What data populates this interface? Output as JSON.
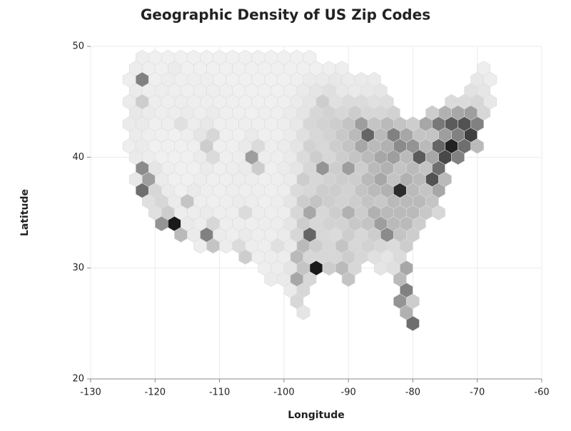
{
  "chart_data": {
    "type": "hexbin",
    "title": "Geographic Density of US Zip Codes",
    "x_label": "Longitude",
    "y_label": "Latitude",
    "colormap": "Greys",
    "grid": true,
    "xlim": [
      -130,
      -60
    ],
    "ylim": [
      20,
      50
    ],
    "xticks": [
      -130,
      -120,
      -110,
      -100,
      -90,
      -80,
      -70,
      -60
    ],
    "yticks": [
      20,
      30,
      40,
      50
    ],
    "x": [
      -122,
      -120,
      -118,
      -116,
      -114,
      -112,
      -110,
      -108,
      -106,
      -104,
      -102,
      -100,
      -98,
      -96,
      -123,
      -121,
      -119,
      -117,
      -115,
      -113,
      -111,
      -109,
      -107,
      -105,
      -103,
      -101,
      -99,
      -97,
      -95,
      -93,
      -91,
      -69,
      -124,
      -122,
      -120,
      -118,
      -116,
      -114,
      -112,
      -110,
      -108,
      -106,
      -104,
      -102,
      -100,
      -98,
      -96,
      -94,
      -92,
      -90,
      -88,
      -86,
      -70,
      -68,
      -123,
      -121,
      -119,
      -117,
      -115,
      -113,
      -111,
      -109,
      -107,
      -105,
      -103,
      -101,
      -99,
      -97,
      -95,
      -93,
      -91,
      -89,
      -87,
      -85,
      -71,
      -69,
      -124,
      -122,
      -120,
      -118,
      -116,
      -114,
      -112,
      -110,
      -108,
      -106,
      -104,
      -102,
      -100,
      -98,
      -96,
      -94,
      -92,
      -90,
      -88,
      -86,
      -84,
      -74,
      -72,
      -70,
      -68,
      -123,
      -121,
      -119,
      -117,
      -115,
      -113,
      -111,
      -109,
      -107,
      -105,
      -103,
      -101,
      -99,
      -97,
      -95,
      -93,
      -91,
      -89,
      -87,
      -85,
      -83,
      -77,
      -75,
      -73,
      -71,
      -69,
      -124,
      -122,
      -120,
      -118,
      -116,
      -114,
      -112,
      -110,
      -108,
      -106,
      -104,
      -102,
      -100,
      -98,
      -96,
      -94,
      -92,
      -90,
      -88,
      -86,
      -84,
      -82,
      -80,
      -78,
      -76,
      -74,
      -72,
      -70,
      -123,
      -121,
      -119,
      -117,
      -115,
      -113,
      -111,
      -109,
      -107,
      -105,
      -103,
      -101,
      -99,
      -97,
      -95,
      -93,
      -91,
      -89,
      -87,
      -85,
      -83,
      -81,
      -79,
      -77,
      -75,
      -73,
      -71,
      -124,
      -122,
      -120,
      -118,
      -116,
      -114,
      -112,
      -110,
      -108,
      -106,
      -104,
      -102,
      -100,
      -98,
      -96,
      -94,
      -92,
      -90,
      -88,
      -86,
      -84,
      -82,
      -80,
      -78,
      -76,
      -74,
      -72,
      -70,
      -123,
      -121,
      -119,
      -117,
      -115,
      -113,
      -111,
      -109,
      -107,
      -105,
      -103,
      -101,
      -99,
      -97,
      -95,
      -93,
      -91,
      -89,
      -87,
      -85,
      -83,
      -81,
      -79,
      -77,
      -75,
      -73,
      -122,
      -120,
      -118,
      -116,
      -114,
      -112,
      -110,
      -108,
      -106,
      -104,
      -102,
      -100,
      -98,
      -96,
      -94,
      -92,
      -90,
      -88,
      -86,
      -84,
      -82,
      -80,
      -78,
      -76,
      -123,
      -121,
      -119,
      -117,
      -115,
      -113,
      -111,
      -109,
      -107,
      -105,
      -103,
      -101,
      -99,
      -97,
      -95,
      -93,
      -91,
      -89,
      -87,
      -85,
      -83,
      -81,
      -79,
      -77,
      -75,
      -122,
      -120,
      -118,
      -116,
      -114,
      -112,
      -110,
      -108,
      -106,
      -104,
      -102,
      -100,
      -98,
      -96,
      -94,
      -92,
      -90,
      -88,
      -86,
      -84,
      -82,
      -80,
      -78,
      -76,
      -121,
      -119,
      -117,
      -115,
      -113,
      -111,
      -109,
      -107,
      -105,
      -103,
      -101,
      -99,
      -97,
      -95,
      -93,
      -91,
      -89,
      -87,
      -85,
      -83,
      -81,
      -79,
      -77,
      -120,
      -118,
      -116,
      -114,
      -112,
      -110,
      -108,
      -106,
      -104,
      -102,
      -100,
      -98,
      -96,
      -94,
      -92,
      -90,
      -88,
      -86,
      -84,
      -82,
      -80,
      -78,
      -76,
      -119,
      -117,
      -115,
      -113,
      -111,
      -109,
      -107,
      -105,
      -103,
      -101,
      -99,
      -97,
      -95,
      -93,
      -91,
      -89,
      -87,
      -85,
      -83,
      -81,
      -79,
      -116,
      -114,
      -112,
      -110,
      -108,
      -106,
      -104,
      -102,
      -100,
      -98,
      -96,
      -94,
      -92,
      -90,
      -88,
      -86,
      -84,
      -82,
      -80,
      -113,
      -111,
      -109,
      -107,
      -105,
      -103,
      -101,
      -99,
      -97,
      -95,
      -93,
      -91,
      -89,
      -87,
      -85,
      -83,
      -81,
      -106,
      -104,
      -102,
      -100,
      -98,
      -96,
      -94,
      -92,
      -90,
      -88,
      -86,
      -84,
      -82,
      -103,
      -101,
      -99,
      -97,
      -95,
      -93,
      -91,
      -89,
      -85,
      -83,
      -81,
      -102,
      -100,
      -98,
      -96,
      -90,
      -82,
      -99,
      -97,
      -81,
      -98,
      -82,
      -80,
      -97,
      -81,
      -80
    ],
    "y": [
      49,
      49,
      49,
      49,
      49,
      49,
      49,
      49,
      49,
      49,
      49,
      49,
      49,
      49,
      48,
      48,
      48,
      48,
      48,
      48,
      48,
      48,
      48,
      48,
      48,
      48,
      48,
      48,
      48,
      48,
      48,
      48,
      47,
      47,
      47,
      47,
      47,
      47,
      47,
      47,
      47,
      47,
      47,
      47,
      47,
      47,
      47,
      47,
      47,
      47,
      47,
      47,
      47,
      47,
      46,
      46,
      46,
      46,
      46,
      46,
      46,
      46,
      46,
      46,
      46,
      46,
      46,
      46,
      46,
      46,
      46,
      46,
      46,
      46,
      46,
      46,
      45,
      45,
      45,
      45,
      45,
      45,
      45,
      45,
      45,
      45,
      45,
      45,
      45,
      45,
      45,
      45,
      45,
      45,
      45,
      45,
      45,
      45,
      45,
      45,
      45,
      44,
      44,
      44,
      44,
      44,
      44,
      44,
      44,
      44,
      44,
      44,
      44,
      44,
      44,
      44,
      44,
      44,
      44,
      44,
      44,
      44,
      44,
      44,
      44,
      44,
      44,
      43,
      43,
      43,
      43,
      43,
      43,
      43,
      43,
      43,
      43,
      43,
      43,
      43,
      43,
      43,
      43,
      43,
      43,
      43,
      43,
      43,
      43,
      43,
      43,
      43,
      43,
      43,
      43,
      42,
      42,
      42,
      42,
      42,
      42,
      42,
      42,
      42,
      42,
      42,
      42,
      42,
      42,
      42,
      42,
      42,
      42,
      42,
      42,
      42,
      42,
      42,
      42,
      42,
      42,
      42,
      41,
      41,
      41,
      41,
      41,
      41,
      41,
      41,
      41,
      41,
      41,
      41,
      41,
      41,
      41,
      41,
      41,
      41,
      41,
      41,
      41,
      41,
      41,
      41,
      41,
      41,
      41,
      41,
      40,
      40,
      40,
      40,
      40,
      40,
      40,
      40,
      40,
      40,
      40,
      40,
      40,
      40,
      40,
      40,
      40,
      40,
      40,
      40,
      40,
      40,
      40,
      40,
      40,
      40,
      39,
      39,
      39,
      39,
      39,
      39,
      39,
      39,
      39,
      39,
      39,
      39,
      39,
      39,
      39,
      39,
      39,
      39,
      39,
      39,
      39,
      39,
      39,
      39,
      38,
      38,
      38,
      38,
      38,
      38,
      38,
      38,
      38,
      38,
      38,
      38,
      38,
      38,
      38,
      38,
      38,
      38,
      38,
      38,
      38,
      38,
      38,
      38,
      38,
      37,
      37,
      37,
      37,
      37,
      37,
      37,
      37,
      37,
      37,
      37,
      37,
      37,
      37,
      37,
      37,
      37,
      37,
      37,
      37,
      37,
      37,
      37,
      37,
      36,
      36,
      36,
      36,
      36,
      36,
      36,
      36,
      36,
      36,
      36,
      36,
      36,
      36,
      36,
      36,
      36,
      36,
      36,
      36,
      36,
      36,
      36,
      35,
      35,
      35,
      35,
      35,
      35,
      35,
      35,
      35,
      35,
      35,
      35,
      35,
      35,
      35,
      35,
      35,
      35,
      35,
      35,
      35,
      35,
      35,
      34,
      34,
      34,
      34,
      34,
      34,
      34,
      34,
      34,
      34,
      34,
      34,
      34,
      34,
      34,
      34,
      34,
      34,
      34,
      34,
      34,
      33,
      33,
      33,
      33,
      33,
      33,
      33,
      33,
      33,
      33,
      33,
      33,
      33,
      33,
      33,
      33,
      33,
      33,
      33,
      32,
      32,
      32,
      32,
      32,
      32,
      32,
      32,
      32,
      32,
      32,
      32,
      32,
      32,
      32,
      32,
      32,
      31,
      31,
      31,
      31,
      31,
      31,
      31,
      31,
      31,
      31,
      31,
      31,
      31,
      30,
      30,
      30,
      30,
      30,
      30,
      30,
      30,
      30,
      30,
      30,
      29,
      29,
      29,
      29,
      29,
      29,
      28,
      28,
      28,
      27,
      27,
      27,
      26,
      26,
      25
    ],
    "values": [
      5,
      3,
      3,
      3,
      3,
      3,
      3,
      3,
      3,
      3,
      3,
      3,
      3,
      3,
      6,
      4,
      3,
      8,
      3,
      3,
      3,
      3,
      3,
      3,
      3,
      3,
      3,
      3,
      3,
      4,
      5,
      5,
      5,
      120,
      4,
      6,
      4,
      5,
      5,
      3,
      3,
      3,
      3,
      3,
      3,
      4,
      8,
      10,
      12,
      8,
      10,
      8,
      12,
      6,
      8,
      5,
      6,
      5,
      4,
      5,
      5,
      4,
      3,
      3,
      3,
      3,
      4,
      10,
      15,
      20,
      12,
      10,
      12,
      14,
      18,
      14,
      8,
      40,
      6,
      5,
      6,
      5,
      5,
      4,
      4,
      3,
      3,
      3,
      4,
      8,
      15,
      40,
      20,
      25,
      25,
      20,
      22,
      25,
      25,
      30,
      12,
      12,
      8,
      5,
      6,
      8,
      5,
      8,
      4,
      4,
      3,
      5,
      4,
      8,
      15,
      30,
      35,
      30,
      40,
      30,
      30,
      35,
      40,
      70,
      80,
      90,
      30,
      8,
      10,
      4,
      5,
      20,
      6,
      12,
      4,
      4,
      5,
      4,
      4,
      6,
      12,
      30,
      35,
      40,
      50,
      90,
      50,
      60,
      50,
      40,
      80,
      130,
      160,
      170,
      120,
      8,
      5,
      4,
      3,
      5,
      15,
      30,
      4,
      3,
      10,
      4,
      4,
      8,
      20,
      30,
      35,
      45,
      60,
      150,
      60,
      120,
      80,
      50,
      50,
      90,
      120,
      190,
      5,
      8,
      3,
      3,
      3,
      4,
      40,
      4,
      4,
      10,
      25,
      5,
      8,
      15,
      35,
      30,
      40,
      50,
      80,
      60,
      70,
      110,
      100,
      60,
      150,
      220,
      140,
      60,
      8,
      6,
      3,
      3,
      3,
      8,
      25,
      4,
      5,
      90,
      6,
      5,
      10,
      25,
      40,
      30,
      40,
      50,
      60,
      80,
      90,
      60,
      160,
      80,
      180,
      120,
      110,
      15,
      5,
      3,
      3,
      8,
      4,
      6,
      8,
      40,
      4,
      8,
      15,
      30,
      100,
      40,
      90,
      40,
      60,
      70,
      50,
      60,
      50,
      140,
      12,
      90,
      8,
      3,
      3,
      6,
      4,
      4,
      6,
      6,
      4,
      5,
      8,
      40,
      30,
      35,
      40,
      40,
      60,
      80,
      50,
      70,
      60,
      170,
      60,
      140,
      30,
      8,
      3,
      10,
      5,
      4,
      6,
      5,
      5,
      4,
      6,
      25,
      30,
      40,
      40,
      35,
      50,
      60,
      70,
      210,
      60,
      50,
      80,
      20,
      30,
      8,
      50,
      5,
      4,
      5,
      8,
      6,
      4,
      6,
      15,
      40,
      50,
      40,
      35,
      40,
      50,
      45,
      60,
      60,
      60,
      50,
      20,
      40,
      6,
      6,
      8,
      5,
      5,
      25,
      6,
      5,
      6,
      30,
      80,
      30,
      40,
      70,
      40,
      70,
      60,
      60,
      60,
      45,
      30,
      100,
      230,
      10,
      6,
      30,
      5,
      6,
      5,
      6,
      6,
      15,
      40,
      30,
      35,
      35,
      45,
      50,
      90,
      60,
      60,
      40,
      60,
      8,
      120,
      8,
      5,
      10,
      5,
      5,
      8,
      30,
      150,
      30,
      25,
      40,
      30,
      40,
      110,
      50,
      40,
      6,
      50,
      6,
      25,
      6,
      5,
      20,
      10,
      60,
      40,
      30,
      50,
      30,
      35,
      30,
      25,
      40,
      40,
      5,
      6,
      6,
      60,
      30,
      30,
      30,
      40,
      30,
      20,
      15,
      25,
      5,
      6,
      15,
      50,
      230,
      40,
      60,
      30,
      15,
      20,
      80,
      8,
      10,
      80,
      30,
      50,
      60,
      10,
      30,
      120,
      30,
      100,
      40,
      15,
      70,
      140
    ]
  }
}
